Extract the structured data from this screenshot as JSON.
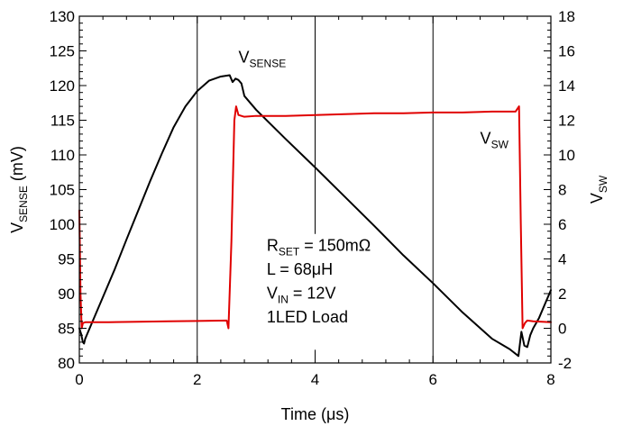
{
  "chart_data": {
    "type": "line",
    "xlabel": "Time (μs)",
    "ylabel_left": {
      "main": "V",
      "sub": "SENSE",
      "rest": " (mV)"
    },
    "ylabel_right": {
      "main": "V",
      "sub": "SW"
    },
    "xlim": [
      0,
      8
    ],
    "ylim_left": [
      80,
      130
    ],
    "ylim_right": [
      -2,
      18
    ],
    "x_ticks": [
      0,
      2,
      4,
      6,
      8
    ],
    "y_left_ticks": [
      80,
      85,
      90,
      95,
      100,
      105,
      110,
      115,
      120,
      125,
      130
    ],
    "y_right_ticks": [
      -2,
      0,
      2,
      4,
      6,
      8,
      10,
      12,
      14,
      16,
      18
    ],
    "grid": {
      "vertical": true,
      "horizontal": false
    },
    "colors": {
      "vsense": "#000000",
      "vsw": "#e00000",
      "axis": "#000000",
      "grid": "#000000"
    },
    "series": [
      {
        "name": {
          "main": "V",
          "sub": "SENSE"
        },
        "axis": "left",
        "color": "#000000",
        "x": [
          0.0,
          0.03,
          0.06,
          0.08,
          0.1,
          0.2,
          0.4,
          0.6,
          0.8,
          1.0,
          1.2,
          1.4,
          1.6,
          1.8,
          2.0,
          2.2,
          2.4,
          2.55,
          2.6,
          2.65,
          2.7,
          2.75,
          2.8,
          3.0,
          3.5,
          4.0,
          4.5,
          5.0,
          5.5,
          6.0,
          6.5,
          7.0,
          7.3,
          7.45,
          7.5,
          7.55,
          7.6,
          7.65,
          7.7,
          7.8,
          8.0
        ],
        "y": [
          85.0,
          84.2,
          83.0,
          82.8,
          83.5,
          85.5,
          89.5,
          93.5,
          97.8,
          102.0,
          106.2,
          110.2,
          114.0,
          117.0,
          119.2,
          120.7,
          121.3,
          121.5,
          120.5,
          121.0,
          120.8,
          120.3,
          118.5,
          116.5,
          112.3,
          108.2,
          104.0,
          99.8,
          95.5,
          91.5,
          87.3,
          83.5,
          82.0,
          81.0,
          84.5,
          82.5,
          82.3,
          84.0,
          85.0,
          86.5,
          90.5
        ]
      },
      {
        "name": {
          "main": "V",
          "sub": "SW"
        },
        "axis": "right",
        "color": "#e00000",
        "x": [
          0.0,
          0.02,
          0.04,
          0.06,
          0.1,
          0.5,
          1.0,
          1.5,
          2.0,
          2.5,
          2.53,
          2.58,
          2.63,
          2.66,
          2.7,
          2.8,
          3.0,
          3.5,
          4.0,
          4.5,
          5.0,
          5.5,
          6.0,
          6.5,
          7.0,
          7.4,
          7.46,
          7.49,
          7.52,
          7.56,
          7.6,
          7.7,
          8.0
        ],
        "y": [
          6.8,
          2.0,
          0.0,
          0.3,
          0.35,
          0.35,
          0.38,
          0.4,
          0.42,
          0.45,
          0.0,
          5.0,
          12.0,
          12.8,
          12.3,
          12.2,
          12.25,
          12.25,
          12.3,
          12.35,
          12.4,
          12.4,
          12.45,
          12.45,
          12.5,
          12.5,
          12.8,
          6.0,
          0.0,
          0.3,
          0.45,
          0.4,
          0.35
        ]
      }
    ],
    "annotations": {
      "vsense_label": {
        "main": "V",
        "sub": "SENSE",
        "x": 2.7,
        "y": 123.3
      },
      "vsw_label": {
        "main": "V",
        "sub": "SW",
        "x": 6.8,
        "y": 111.6
      },
      "info_lines": [
        {
          "main": "R",
          "sub": "SET",
          "rest": " = 150mΩ"
        },
        {
          "main": "L = 68μH",
          "sub": "",
          "rest": ""
        },
        {
          "main": "V",
          "sub": "IN",
          "rest": " = 12V"
        },
        {
          "main": "1LED Load",
          "sub": "",
          "rest": ""
        }
      ]
    }
  }
}
